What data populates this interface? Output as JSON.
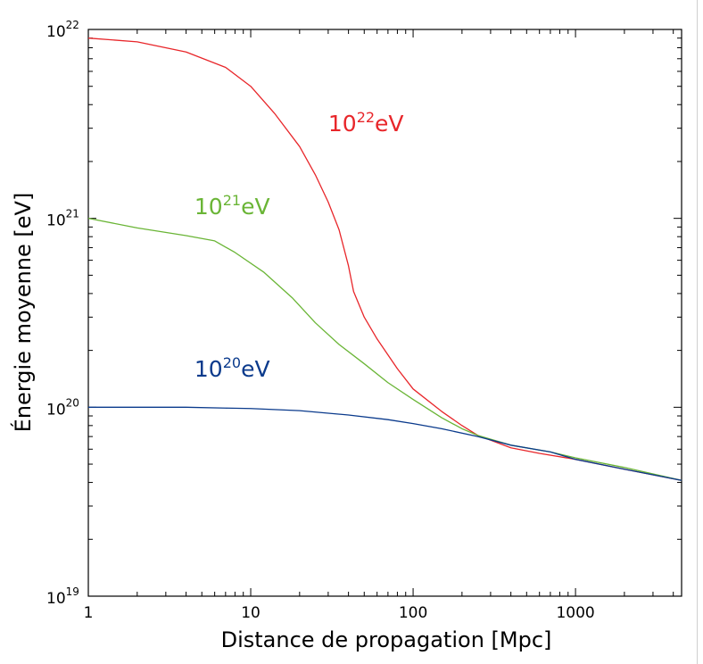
{
  "chart_data": {
    "type": "line",
    "xlabel": "Distance de propagation [Mpc]",
    "ylabel": "Énergie moyenne [eV]",
    "xscale": "log",
    "yscale": "log",
    "xlim": [
      1,
      4500
    ],
    "ylim": [
      1e+19,
      1e+22
    ],
    "grid": false,
    "legend": "none",
    "x_ticks": [
      {
        "value": 1,
        "label": "1"
      },
      {
        "value": 10,
        "label": "10"
      },
      {
        "value": 100,
        "label": "100"
      },
      {
        "value": 1000,
        "label": "1000"
      }
    ],
    "y_ticks": [
      {
        "value": 1e+19,
        "base": "10",
        "exp": "19"
      },
      {
        "value": 1e+20,
        "base": "10",
        "exp": "20"
      },
      {
        "value": 1e+21,
        "base": "10",
        "exp": "21"
      },
      {
        "value": 1e+22,
        "base": "10",
        "exp": "22"
      }
    ],
    "series": [
      {
        "label_base": "10",
        "label_exp": "22",
        "label_unit": "eV",
        "color": "#e8262a",
        "points": [
          [
            1,
            9e+21
          ],
          [
            2,
            8.6e+21
          ],
          [
            4,
            7.6e+21
          ],
          [
            7,
            6.3e+21
          ],
          [
            10,
            5e+21
          ],
          [
            14,
            3.6e+21
          ],
          [
            20,
            2.4e+21
          ],
          [
            25,
            1.7e+21
          ],
          [
            30,
            1.22e+21
          ],
          [
            35,
            8.7e+20
          ],
          [
            40,
            5.6e+20
          ],
          [
            43,
            4.1e+20
          ],
          [
            50,
            3e+20
          ],
          [
            60,
            2.3e+20
          ],
          [
            80,
            1.6e+20
          ],
          [
            100,
            1.25e+20
          ],
          [
            150,
            9.5e+19
          ],
          [
            200,
            8e+19
          ],
          [
            250,
            7.1e+19
          ],
          [
            400,
            6.1e+19
          ],
          [
            600,
            5.7e+19
          ],
          [
            1000,
            5.3e+19
          ],
          [
            2000,
            4.7e+19
          ],
          [
            4500,
            4.1e+19
          ]
        ]
      },
      {
        "label_base": "10",
        "label_exp": "21",
        "label_unit": "eV",
        "color": "#6ab536",
        "points": [
          [
            1,
            1e+21
          ],
          [
            2,
            8.9e+20
          ],
          [
            4,
            8.1e+20
          ],
          [
            6,
            7.6e+20
          ],
          [
            8,
            6.6e+20
          ],
          [
            12,
            5.2e+20
          ],
          [
            18,
            3.8e+20
          ],
          [
            25,
            2.8e+20
          ],
          [
            35,
            2.15e+20
          ],
          [
            50,
            1.7e+20
          ],
          [
            70,
            1.35e+20
          ],
          [
            100,
            1.1e+20
          ],
          [
            150,
            8.8e+19
          ],
          [
            200,
            7.7e+19
          ],
          [
            250,
            7.1e+19
          ],
          [
            400,
            6.3e+19
          ],
          [
            700,
            5.8e+19
          ],
          [
            1000,
            5.4e+19
          ],
          [
            2000,
            4.8e+19
          ],
          [
            4500,
            4.1e+19
          ]
        ]
      },
      {
        "label_base": "10",
        "label_exp": "20",
        "label_unit": "eV",
        "color": "#0a3a8c",
        "points": [
          [
            1,
            1e+20
          ],
          [
            2,
            1e+20
          ],
          [
            4,
            1e+20
          ],
          [
            7,
            9.9e+19
          ],
          [
            10,
            9.85e+19
          ],
          [
            20,
            9.6e+19
          ],
          [
            40,
            9.1e+19
          ],
          [
            70,
            8.6e+19
          ],
          [
            100,
            8.2e+19
          ],
          [
            150,
            7.7e+19
          ],
          [
            250,
            7e+19
          ],
          [
            400,
            6.3e+19
          ],
          [
            700,
            5.8e+19
          ],
          [
            1000,
            5.3e+19
          ],
          [
            2000,
            4.7e+19
          ],
          [
            4500,
            4.1e+19
          ]
        ]
      }
    ]
  }
}
